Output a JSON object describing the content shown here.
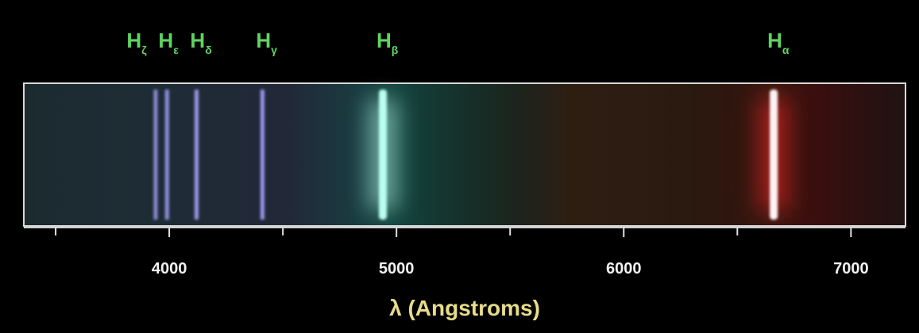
{
  "chart_data": {
    "type": "spectrum",
    "x_label": "λ (Angstroms)",
    "xlim": [
      3360,
      7240
    ],
    "xticks": [
      4000,
      5000,
      6000,
      7000
    ],
    "minor_xticks": [
      3500,
      4500,
      5500,
      6500
    ],
    "lines": [
      {
        "symbol": "H",
        "subscript": "ζ",
        "wavelength": 3940,
        "color": "#8a8ad0"
      },
      {
        "symbol": "H",
        "subscript": "ε",
        "wavelength": 3990,
        "color": "#8f8fdc"
      },
      {
        "symbol": "H",
        "subscript": "δ",
        "wavelength": 4120,
        "color": "#9a98ea"
      },
      {
        "symbol": "H",
        "subscript": "γ",
        "wavelength": 4410,
        "color": "#9898ee"
      },
      {
        "symbol": "H",
        "subscript": "β",
        "wavelength": 4940,
        "color": "#b8fff0"
      },
      {
        "symbol": "H",
        "subscript": "α",
        "wavelength": 6660,
        "color": "#ff2020"
      }
    ]
  }
}
